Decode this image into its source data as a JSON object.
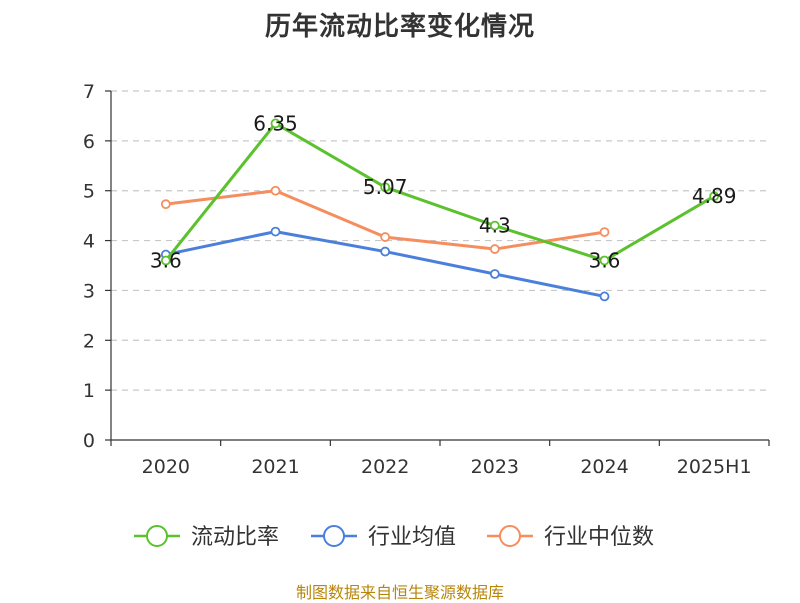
{
  "title": "历年流动比率变化情况",
  "source": "制图数据来自恒生聚源数据库",
  "chart_data": {
    "type": "line",
    "categories": [
      "2020",
      "2021",
      "2022",
      "2023",
      "2024",
      "2025H1"
    ],
    "ylim": [
      0,
      7
    ],
    "yticks": [
      0,
      1,
      2,
      3,
      4,
      5,
      6,
      7
    ],
    "grid": true,
    "legend_position": "bottom",
    "series": [
      {
        "name": "流动比率",
        "color": "#5bc12d",
        "values": [
          3.6,
          6.35,
          5.07,
          4.3,
          3.6,
          4.89
        ],
        "labels": [
          "3.6",
          "6.35",
          "5.07",
          "4.3",
          "3.6",
          "4.89"
        ]
      },
      {
        "name": "行业均值",
        "color": "#4a7fdb",
        "values": [
          3.72,
          4.18,
          3.78,
          3.33,
          2.88,
          null
        ]
      },
      {
        "name": "行业中位数",
        "color": "#f58d5e",
        "values": [
          4.73,
          5.0,
          4.07,
          3.83,
          4.17,
          null
        ]
      }
    ]
  }
}
